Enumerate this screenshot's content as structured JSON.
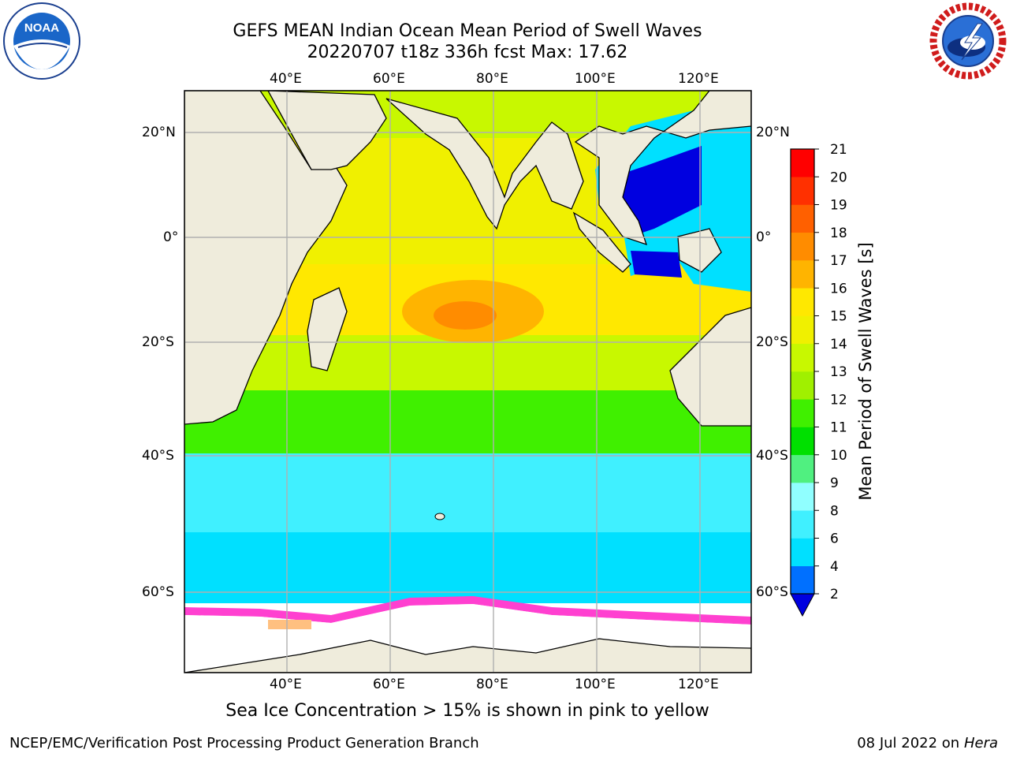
{
  "title": {
    "line1": "GEFS MEAN Indian Ocean Mean Period of Swell Waves",
    "line2": "20220707 t18z 336h fcst   Max: 17.62"
  },
  "map": {
    "top_lon_labels": [
      "40°E",
      "60°E",
      "80°E",
      "100°E",
      "120°E"
    ],
    "bottom_lon_labels": [
      "40°E",
      "60°E",
      "80°E",
      "100°E",
      "120°E"
    ],
    "left_lat_labels": [
      "20°N",
      "0°",
      "20°S",
      "40°S",
      "60°S"
    ],
    "right_lat_labels": [
      "20°N",
      "0°",
      "20°S",
      "40°S",
      "60°S"
    ],
    "land_color": "#efecdc",
    "sea_ice_color": "#ffffff",
    "grid_color": "#b0b0b0"
  },
  "colorbar": {
    "label": "Mean Period of Swell Waves [s]",
    "tick_labels": [
      "2",
      "4",
      "6",
      "8",
      "9",
      "10",
      "11",
      "12",
      "13",
      "14",
      "15",
      "16",
      "17",
      "18",
      "19",
      "20",
      "21"
    ],
    "colors": [
      "#0070ff",
      "#00e0ff",
      "#40f0ff",
      "#90ffff",
      "#50f080",
      "#00e000",
      "#40f000",
      "#a0f000",
      "#c8f800",
      "#f0f000",
      "#ffe800",
      "#ffb400",
      "#ff8c00",
      "#ff6000",
      "#ff3000",
      "#ff0000"
    ],
    "extend_color": "#0000e0"
  },
  "footer": {
    "sea_ice_note": "Sea Ice Concentration > 15% is shown in pink to yellow",
    "credit": "NCEP/EMC/Verification Post Processing Product Generation Branch",
    "date": "08 Jul 2022 on",
    "machine": "Hera"
  },
  "logos": {
    "left": "noaa-logo",
    "right": "nws-logo",
    "right_ring_text": "NATIONAL WEATHER SERVICE",
    "left_ring_text": "NATIONAL OCEANIC AND ATMOSPHERIC ADMINISTRATION · U.S. DEPARTMENT OF COMMERCE"
  }
}
